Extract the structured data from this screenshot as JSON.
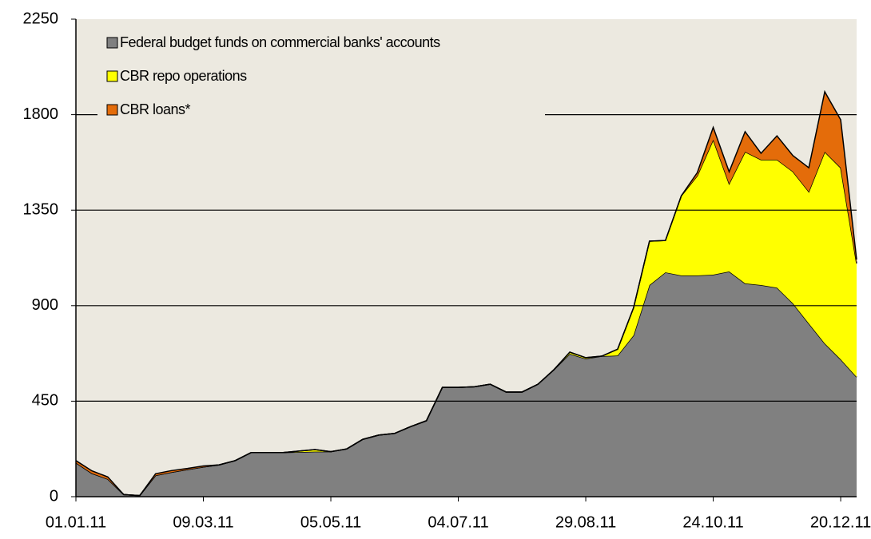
{
  "chart_data": {
    "type": "stacked_area",
    "categories": [
      "01.01.11",
      null,
      null,
      null,
      null,
      null,
      null,
      null,
      "09.03.11",
      null,
      null,
      null,
      null,
      null,
      null,
      null,
      "05.05.11",
      null,
      null,
      null,
      null,
      null,
      null,
      null,
      "04.07.11",
      null,
      null,
      null,
      null,
      null,
      null,
      null,
      "29.08.11",
      null,
      null,
      null,
      null,
      null,
      null,
      null,
      "24.10.11",
      null,
      null,
      null,
      null,
      null,
      null,
      null,
      "20.12.11",
      null
    ],
    "series": [
      {
        "name": "Federal budget funds on commercial banks' accounts",
        "color": "#808080",
        "values": [
          160,
          110,
          83,
          10,
          5,
          100,
          115,
          128,
          140,
          150,
          170,
          208,
          208,
          208,
          210,
          212,
          212,
          225,
          270,
          290,
          298,
          330,
          358,
          515,
          515,
          518,
          530,
          493,
          493,
          530,
          598,
          673,
          650,
          662,
          665,
          760,
          997,
          1057,
          1042,
          1042,
          1046,
          1061,
          1005,
          997,
          985,
          911,
          816,
          722,
          647,
          564
        ]
      },
      {
        "name": "CBR repo operations",
        "color": "#ffff00",
        "values": [
          0,
          0,
          0,
          0,
          0,
          0,
          0,
          0,
          0,
          0,
          0,
          0,
          0,
          0,
          5,
          10,
          0,
          0,
          0,
          0,
          0,
          0,
          0,
          0,
          0,
          0,
          0,
          0,
          0,
          0,
          0,
          8,
          5,
          0,
          30,
          130,
          207,
          150,
          376,
          470,
          636,
          414,
          620,
          591,
          603,
          621,
          621,
          903,
          903,
          535
        ]
      },
      {
        "name": "CBR loans*",
        "color": "#e46c0a",
        "values": [
          10,
          12,
          10,
          0,
          0,
          8,
          8,
          5,
          5,
          0,
          0,
          0,
          0,
          0,
          0,
          0,
          0,
          0,
          0,
          0,
          0,
          0,
          0,
          0,
          0,
          0,
          0,
          0,
          0,
          0,
          0,
          0,
          0,
          0,
          0,
          0,
          0,
          0,
          0,
          15,
          58,
          56,
          95,
          30,
          112,
          75,
          113,
          283,
          226,
          18
        ]
      }
    ],
    "ylim": [
      0,
      2250
    ],
    "yticks": [
      0,
      450,
      900,
      1350,
      1800,
      2250
    ],
    "grid": true,
    "legend": "upper left"
  }
}
